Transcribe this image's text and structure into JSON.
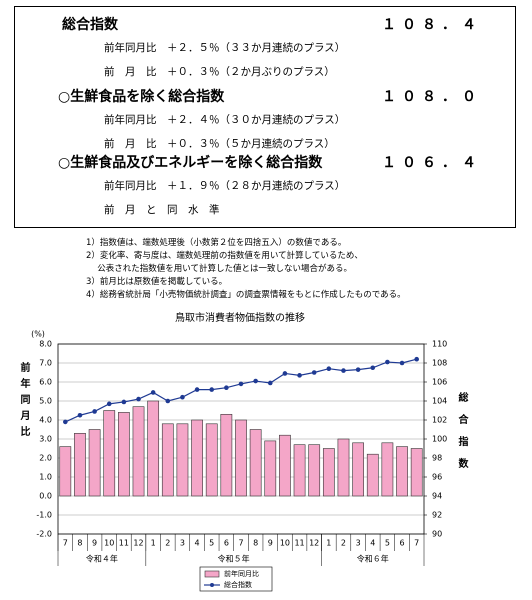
{
  "summary": [
    {
      "label": "総合指数",
      "value": "１０８．４",
      "details": [
        "前年同月比　＋２．５％（３３か月連続のプラス）",
        "前　月　比　＋０．３％（２か月ぶりのプラス）"
      ]
    },
    {
      "label": "○生鮮食品を除く総合指数",
      "value": "１０８．０",
      "details": [
        "前年同月比　＋２．４％（３０か月連続のプラス）",
        "前　月　比　＋０．３％（５か月連続のプラス）"
      ]
    },
    {
      "label": "○生鮮食品及びエネルギーを除く総合指数",
      "value": "１０６．４",
      "details": [
        "前年同月比　＋１．９％（２８か月連続のプラス）",
        "前　月　と　同　水　準"
      ]
    }
  ],
  "notes": [
    "1）指数値は、端数処理後（小数第２位を四捨五入）の数値である。",
    "2）変化率、寄与度は、端数処理前の指数値を用いて計算しているため、",
    "　 公表された指数値を用いて計算した値とは一致しない場合がある。",
    "3）前月比は原数値を掲載している。",
    "4）総務省統計局「小売物価統計調査」の調査票情報をもとに作成したものである。"
  ],
  "chart_data": {
    "type": "bar-line",
    "title": "鳥取市消費者物価指数の推移",
    "y_unit": "(%)",
    "y_label": "前年同月比",
    "y2_label": "総合指数",
    "categories": [
      "7",
      "8",
      "9",
      "10",
      "11",
      "12",
      "1",
      "2",
      "3",
      "4",
      "5",
      "6",
      "7",
      "8",
      "9",
      "10",
      "11",
      "12",
      "1",
      "2",
      "3",
      "4",
      "5",
      "6",
      "7"
    ],
    "category_groups": [
      "令和４年",
      "令和５年",
      "令和６年"
    ],
    "ylim": [
      -2,
      8
    ],
    "yticks": [
      {
        "value": -2,
        "label": "-2.0"
      },
      {
        "value": -1,
        "label": "-1.0"
      },
      {
        "value": 0,
        "label": "0.0"
      },
      {
        "value": 1,
        "label": "1.0"
      },
      {
        "value": 2,
        "label": "2.0"
      },
      {
        "value": 3,
        "label": "3.0"
      },
      {
        "value": 4,
        "label": "4.0"
      },
      {
        "value": 5,
        "label": "5.0"
      },
      {
        "value": 6,
        "label": "6.0"
      },
      {
        "value": 7,
        "label": "7.0"
      },
      {
        "value": 8,
        "label": "8.0"
      }
    ],
    "y2lim": [
      90,
      110
    ],
    "y2ticks": [
      90,
      92,
      94,
      96,
      98,
      100,
      102,
      104,
      106,
      108,
      110
    ],
    "series": [
      {
        "name": "前年同月比",
        "color": "#f4a6c8",
        "values": [
          2.6,
          3.3,
          3.5,
          4.5,
          4.4,
          4.7,
          5.0,
          3.8,
          3.8,
          4.0,
          3.8,
          4.3,
          4.0,
          3.5,
          2.9,
          3.2,
          2.7,
          2.7,
          2.5,
          3.0,
          2.8,
          2.2,
          2.8,
          2.6,
          2.5
        ]
      },
      {
        "name": "総合指数",
        "color": "#1f3a93",
        "axis": "y2",
        "values": [
          101.8,
          102.5,
          102.9,
          103.7,
          103.9,
          104.2,
          104.9,
          104.0,
          104.4,
          105.2,
          105.2,
          105.4,
          105.8,
          106.1,
          105.9,
          106.9,
          106.7,
          107.0,
          107.4,
          107.2,
          107.3,
          107.5,
          108.1,
          108.0,
          108.4
        ]
      }
    ]
  }
}
